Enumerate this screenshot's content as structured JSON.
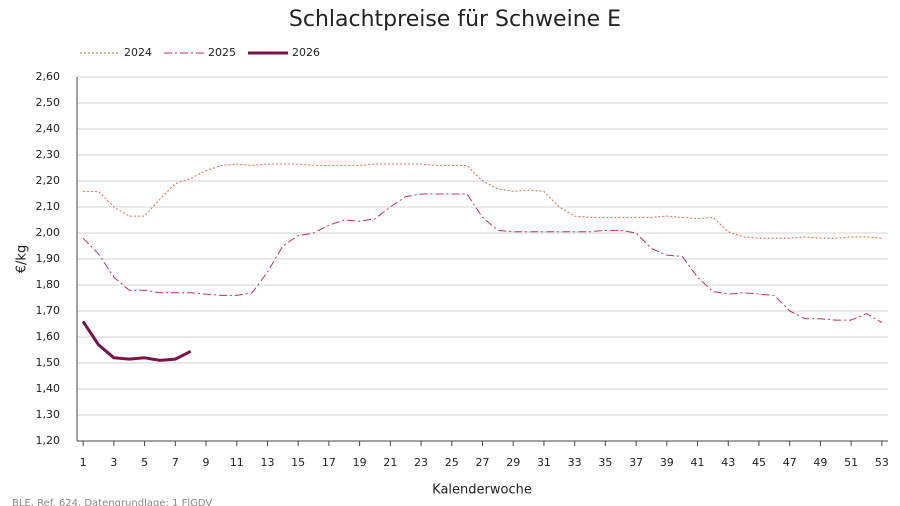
{
  "chart_data": {
    "type": "line",
    "title": "Schlachtpreise für Schweine E",
    "x_label": "Kalenderwoche",
    "y_label": "€/kg",
    "source": "BLE, Ref. 624, Datengrundlage: 1 FlGDV",
    "x": [
      1,
      2,
      3,
      4,
      5,
      6,
      7,
      8,
      9,
      10,
      11,
      12,
      13,
      14,
      15,
      16,
      17,
      18,
      19,
      20,
      21,
      22,
      23,
      24,
      25,
      26,
      27,
      28,
      29,
      30,
      31,
      32,
      33,
      34,
      35,
      36,
      37,
      38,
      39,
      40,
      41,
      42,
      43,
      44,
      45,
      46,
      47,
      48,
      49,
      50,
      51,
      52,
      53
    ],
    "xlim": [
      0.6,
      53.4
    ],
    "xticks": [
      1,
      3,
      5,
      7,
      9,
      11,
      13,
      15,
      17,
      19,
      21,
      23,
      25,
      27,
      29,
      31,
      33,
      35,
      37,
      39,
      41,
      43,
      45,
      47,
      49,
      51,
      53
    ],
    "ylim": [
      1.2,
      2.6
    ],
    "yticks": [
      {
        "value": 1.2,
        "label": "1,20"
      },
      {
        "value": 1.3,
        "label": "1,30"
      },
      {
        "value": 1.4,
        "label": "1,40"
      },
      {
        "value": 1.5,
        "label": "1,50"
      },
      {
        "value": 1.6,
        "label": "1,60"
      },
      {
        "value": 1.7,
        "label": "1,70"
      },
      {
        "value": 1.8,
        "label": "1,80"
      },
      {
        "value": 1.9,
        "label": "1,90"
      },
      {
        "value": 2.0,
        "label": "2,00"
      },
      {
        "value": 2.1,
        "label": "2,10"
      },
      {
        "value": 2.2,
        "label": "2,20"
      },
      {
        "value": 2.3,
        "label": "2,30"
      },
      {
        "value": 2.4,
        "label": "2,40"
      },
      {
        "value": 2.5,
        "label": "2,50"
      },
      {
        "value": 2.6,
        "label": "2,60"
      }
    ],
    "grid": true,
    "legend": "top-left",
    "series": [
      {
        "name": "2024",
        "color": "#e2694f",
        "linestyle": "dotted",
        "linewidth": 1,
        "values": [
          2.16,
          2.16,
          2.1,
          2.065,
          2.065,
          2.13,
          2.19,
          2.21,
          2.24,
          2.26,
          2.265,
          2.26,
          2.265,
          2.265,
          2.265,
          2.26,
          2.26,
          2.26,
          2.26,
          2.265,
          2.265,
          2.265,
          2.265,
          2.26,
          2.26,
          2.26,
          2.2,
          2.17,
          2.16,
          2.165,
          2.16,
          2.1,
          2.065,
          2.06,
          2.06,
          2.06,
          2.06,
          2.06,
          2.065,
          2.06,
          2.055,
          2.06,
          2.005,
          1.985,
          1.98,
          1.98,
          1.98,
          1.985,
          1.98,
          1.98,
          1.985,
          1.985,
          1.98
        ]
      },
      {
        "name": "2025",
        "color": "#c42d68",
        "linestyle": "dashdot",
        "linewidth": 1,
        "values": [
          1.98,
          1.92,
          1.83,
          1.78,
          1.78,
          1.77,
          1.77,
          1.77,
          1.765,
          1.76,
          1.76,
          1.77,
          1.85,
          1.95,
          1.99,
          2.0,
          2.03,
          2.05,
          2.045,
          2.055,
          2.1,
          2.14,
          2.15,
          2.15,
          2.15,
          2.15,
          2.06,
          2.01,
          2.005,
          2.005,
          2.005,
          2.005,
          2.005,
          2.005,
          2.01,
          2.01,
          2.0,
          1.94,
          1.915,
          1.91,
          1.83,
          1.775,
          1.765,
          1.77,
          1.765,
          1.76,
          1.7,
          1.67,
          1.67,
          1.665,
          1.665,
          1.69,
          1.655
        ]
      },
      {
        "name": "2026",
        "color": "#7a1448",
        "linestyle": "solid",
        "linewidth": 3,
        "values": [
          1.66,
          1.57,
          1.52,
          1.515,
          1.52,
          1.51,
          1.515,
          1.545,
          null,
          null,
          null,
          null,
          null,
          null,
          null,
          null,
          null,
          null,
          null,
          null,
          null,
          null,
          null,
          null,
          null,
          null,
          null,
          null,
          null,
          null,
          null,
          null,
          null,
          null,
          null,
          null,
          null,
          null,
          null,
          null,
          null,
          null,
          null,
          null,
          null,
          null,
          null,
          null,
          null,
          null,
          null,
          null,
          null
        ]
      }
    ]
  }
}
